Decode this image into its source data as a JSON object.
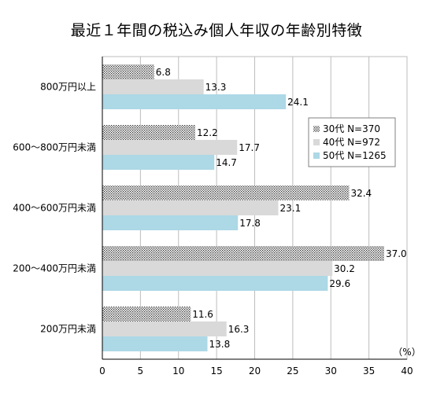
{
  "chart_data": {
    "type": "bar",
    "orientation": "horizontal",
    "title": "最近１年間の税込み個人年収の年齢別特徴",
    "unit_label": "（%）",
    "categories": [
      "800万円以上",
      "600～800万円未満",
      "400～600万円未満",
      "200～400万円未満",
      "200万円未満"
    ],
    "series": [
      {
        "name": "30代 N=370",
        "values": [
          6.8,
          12.2,
          32.4,
          37.0,
          11.6
        ],
        "labels": [
          "6.8",
          "12.2",
          "32.4",
          "37.0",
          "11.6"
        ],
        "color": "#ffffff",
        "pattern": "dots"
      },
      {
        "name": "40代 N=972",
        "values": [
          13.3,
          17.7,
          23.1,
          30.2,
          16.3
        ],
        "labels": [
          "13.3",
          "17.7",
          "23.1",
          "30.2",
          "16.3"
        ],
        "color": "#d9d9d9"
      },
      {
        "name": "50代 N=1265",
        "values": [
          24.1,
          14.7,
          17.8,
          29.6,
          13.8
        ],
        "labels": [
          "24.1",
          "14.7",
          "17.8",
          "29.6",
          "13.8"
        ],
        "color": "#add8e6"
      }
    ],
    "xlim": [
      0,
      40
    ],
    "xticks": [
      0,
      5,
      10,
      15,
      20,
      25,
      30,
      35,
      40
    ],
    "grid": true,
    "legend_position": "right"
  }
}
